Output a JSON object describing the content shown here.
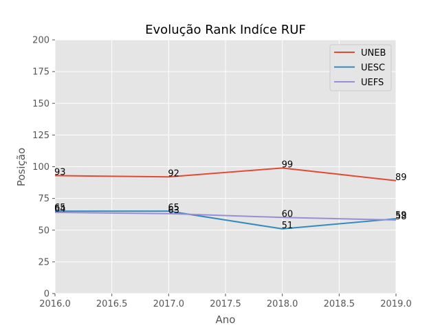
{
  "chart_data": {
    "type": "line",
    "title": "Evolução Rank Indíce RUF",
    "xlabel": "Ano",
    "ylabel": "Posição",
    "xlim": [
      2016.0,
      2019.0
    ],
    "ylim": [
      0,
      200
    ],
    "xticks": [
      2016.0,
      2016.5,
      2017.0,
      2017.5,
      2018.0,
      2018.5,
      2019.0
    ],
    "xtick_labels": [
      "2016.0",
      "2016.5",
      "2017.0",
      "2017.5",
      "2018.0",
      "2018.5",
      "2019.0"
    ],
    "yticks": [
      0,
      25,
      50,
      75,
      100,
      125,
      150,
      175,
      200
    ],
    "ytick_labels": [
      "0",
      "25",
      "50",
      "75",
      "100",
      "125",
      "150",
      "175",
      "200"
    ],
    "grid": true,
    "legend_position": "top-right",
    "x": [
      2016,
      2017,
      2018,
      2019
    ],
    "series": [
      {
        "name": "UNEB",
        "color": "#e24a33",
        "values": [
          93,
          92,
          99,
          89
        ]
      },
      {
        "name": "UESC",
        "color": "#348abd",
        "values": [
          65,
          65,
          51,
          59
        ]
      },
      {
        "name": "UEFS",
        "color": "#988ed5",
        "values": [
          64,
          63,
          60,
          58
        ]
      }
    ],
    "annotations": [
      {
        "x": 2016,
        "y": 93,
        "text": "93"
      },
      {
        "x": 2017,
        "y": 92,
        "text": "92"
      },
      {
        "x": 2018,
        "y": 99,
        "text": "99"
      },
      {
        "x": 2019,
        "y": 89,
        "text": "89"
      },
      {
        "x": 2016,
        "y": 65,
        "text": "65"
      },
      {
        "x": 2017,
        "y": 65,
        "text": "65"
      },
      {
        "x": 2018,
        "y": 51,
        "text": "51"
      },
      {
        "x": 2019,
        "y": 59,
        "text": "59"
      },
      {
        "x": 2016,
        "y": 64,
        "text": "64"
      },
      {
        "x": 2017,
        "y": 63,
        "text": "63"
      },
      {
        "x": 2018,
        "y": 60,
        "text": "60"
      },
      {
        "x": 2019,
        "y": 58,
        "text": "58"
      }
    ],
    "colors": {
      "plot_background": "#e5e5e5",
      "grid": "#ffffff",
      "text": "#555555",
      "annotation_text": "#000000"
    }
  }
}
